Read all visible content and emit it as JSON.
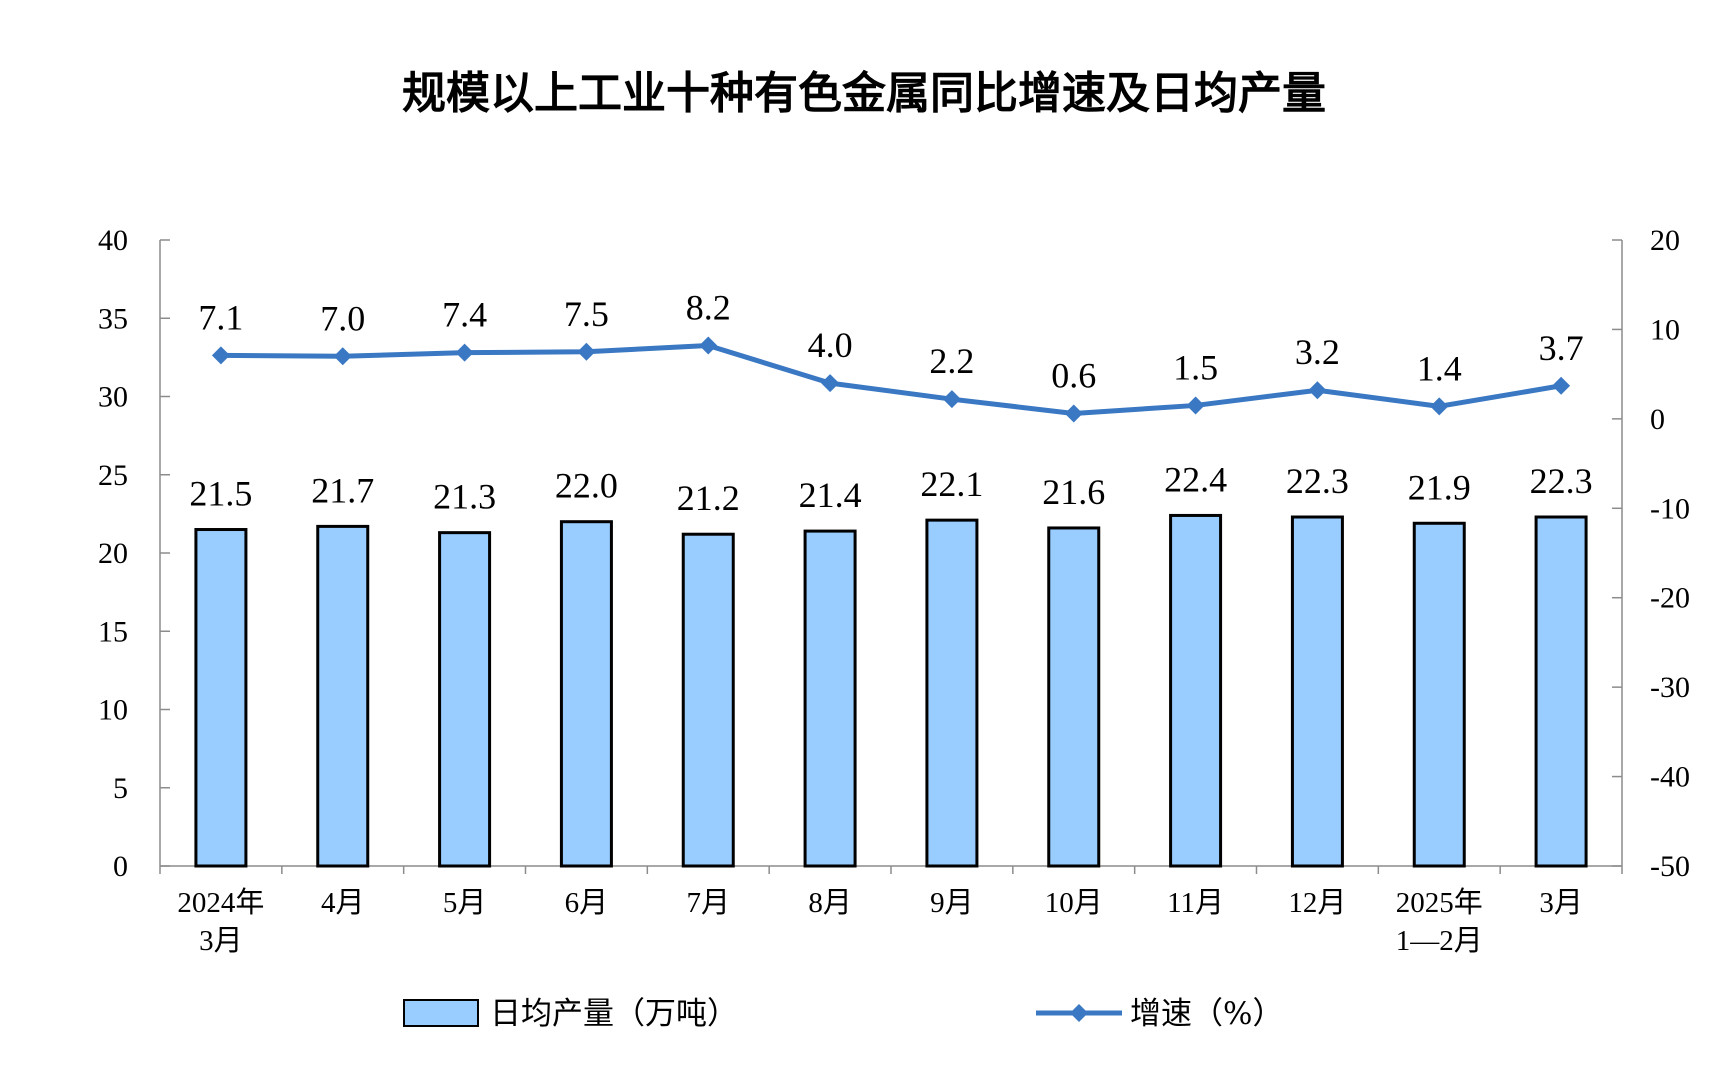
{
  "chart_data": {
    "type": "bar+line",
    "title": "规模以上工业十种有色金属同比增速及日均产量",
    "categories": [
      [
        "2024年",
        "3月"
      ],
      [
        "4月"
      ],
      [
        "5月"
      ],
      [
        "6月"
      ],
      [
        "7月"
      ],
      [
        "8月"
      ],
      [
        "9月"
      ],
      [
        "10月"
      ],
      [
        "11月"
      ],
      [
        "12月"
      ],
      [
        "2025年",
        "1—2月"
      ],
      [
        "3月"
      ]
    ],
    "series": [
      {
        "name": "日均产量（万吨）",
        "type": "bar",
        "axis": "left",
        "color": "#99CCFF",
        "edge_color": "#000000",
        "values": [
          21.5,
          21.7,
          21.3,
          22.0,
          21.2,
          21.4,
          22.1,
          21.6,
          22.4,
          22.3,
          21.9,
          22.3
        ],
        "labels": [
          "21.5",
          "21.7",
          "21.3",
          "22.0",
          "21.2",
          "21.4",
          "22.1",
          "21.6",
          "22.4",
          "22.3",
          "21.9",
          "22.3"
        ]
      },
      {
        "name": "增速（%）",
        "type": "line",
        "axis": "right",
        "color": "#3A78C3",
        "marker": "diamond",
        "values": [
          7.1,
          7.0,
          7.4,
          7.5,
          8.2,
          4.0,
          2.2,
          0.6,
          1.5,
          3.2,
          1.4,
          3.7
        ],
        "labels": [
          "7.1",
          "7.0",
          "7.4",
          "7.5",
          "8.2",
          "4.0",
          "2.2",
          "0.6",
          "1.5",
          "3.2",
          "1.4",
          "3.7"
        ]
      }
    ],
    "y_left": {
      "min": 0,
      "max": 40,
      "ticks": [
        "0",
        "5",
        "10",
        "15",
        "20",
        "25",
        "30",
        "35",
        "40"
      ]
    },
    "y_right": {
      "min": -50,
      "max": 20,
      "ticks": [
        "-50",
        "-40",
        "-30",
        "-20",
        "-10",
        "0",
        "10",
        "20"
      ]
    },
    "grid": false,
    "legend_position": "bottom"
  }
}
